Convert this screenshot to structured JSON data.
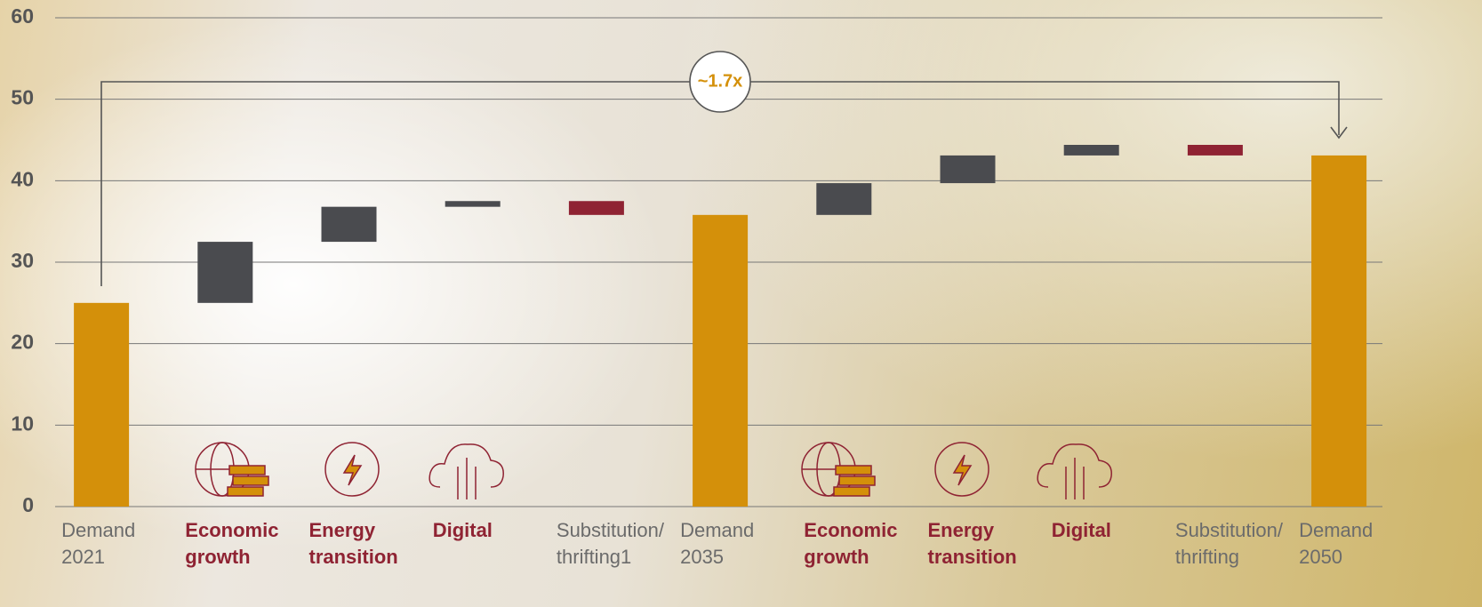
{
  "chart_data": {
    "type": "waterfall",
    "categories": [
      "Demand 2021",
      "Economic growth",
      "Energy transition",
      "Digital",
      "Substitution/ thrifting1",
      "Demand 2035",
      "Economic growth",
      "Energy transition",
      "Digital",
      "Substitution/ thrifting",
      "Demand 2050"
    ],
    "values": [
      25,
      7.5,
      4.3,
      0.7,
      -1.7,
      35.8,
      3.9,
      3.4,
      1.3,
      -1.3,
      43.1
    ],
    "measures": [
      "total",
      "relative",
      "relative",
      "relative",
      "relative",
      "total",
      "relative",
      "relative",
      "relative",
      "relative",
      "total"
    ],
    "label_emphasis": [
      false,
      true,
      true,
      true,
      false,
      false,
      true,
      true,
      true,
      false,
      false
    ],
    "colors": {
      "total": "#d4900a",
      "increase": "#4a4b4f",
      "decrease": "#8f2333"
    },
    "ylim": [
      0,
      60
    ],
    "yticks": [
      0,
      10,
      20,
      30,
      40,
      50,
      60
    ],
    "grid": true,
    "annotation": "~1.7x"
  }
}
